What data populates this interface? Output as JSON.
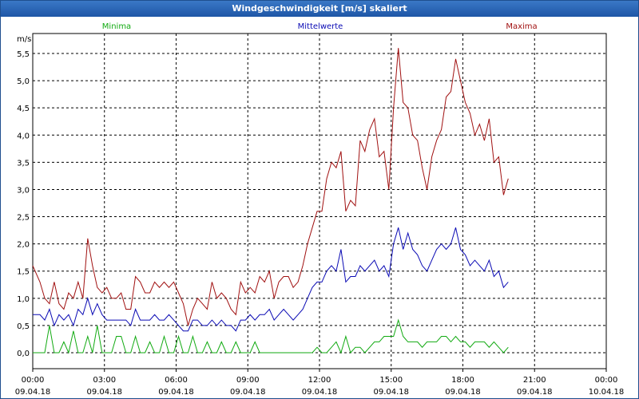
{
  "window": {
    "title": "Windgeschwindigkeit [m/s] skaliert"
  },
  "colors": {
    "minima": "#11aa11",
    "mittelwerte": "#0a0ab4",
    "maxima": "#a01010",
    "grid": "#000000"
  },
  "chart_data": {
    "type": "line",
    "title": "Windgeschwindigkeit [m/s] skaliert",
    "ylabel": "m/s",
    "xlabel": "",
    "ylim": [
      0,
      5.7
    ],
    "xlim": [
      0,
      24
    ],
    "yticks": [
      {
        "value": 0.0,
        "label": "0,0"
      },
      {
        "value": 0.5,
        "label": "0,5"
      },
      {
        "value": 1.0,
        "label": "1,0"
      },
      {
        "value": 1.5,
        "label": "1,5"
      },
      {
        "value": 2.0,
        "label": "2,0"
      },
      {
        "value": 2.5,
        "label": "2,5"
      },
      {
        "value": 3.0,
        "label": "3,0"
      },
      {
        "value": 3.5,
        "label": "3,5"
      },
      {
        "value": 4.0,
        "label": "4,0"
      },
      {
        "value": 4.5,
        "label": "4,5"
      },
      {
        "value": 5.0,
        "label": "5,0"
      },
      {
        "value": 5.5,
        "label": "5,5"
      }
    ],
    "xticks": [
      {
        "value": 0,
        "time": "00:00",
        "date": "09.04.18"
      },
      {
        "value": 3,
        "time": "03:00",
        "date": "09.04.18"
      },
      {
        "value": 6,
        "time": "06:00",
        "date": "09.04.18"
      },
      {
        "value": 9,
        "time": "09:00",
        "date": "09.04.18"
      },
      {
        "value": 12,
        "time": "12:00",
        "date": "09.04.18"
      },
      {
        "value": 15,
        "time": "15:00",
        "date": "09.04.18"
      },
      {
        "value": 18,
        "time": "18:00",
        "date": "09.04.18"
      },
      {
        "value": 21,
        "time": "21:00",
        "date": "09.04.18"
      },
      {
        "value": 24,
        "time": "00:00",
        "date": "10.04.18"
      }
    ],
    "legend": [
      "Minima",
      "Mittelwerte",
      "Maxima"
    ],
    "series": [
      {
        "name": "Maxima",
        "color": "#a01010",
        "points": [
          [
            0,
            1.6
          ],
          [
            0.3,
            1.3
          ],
          [
            0.5,
            1.0
          ],
          [
            0.7,
            0.9
          ],
          [
            0.9,
            1.3
          ],
          [
            1.1,
            0.9
          ],
          [
            1.3,
            0.8
          ],
          [
            1.5,
            1.1
          ],
          [
            1.7,
            1.0
          ],
          [
            1.9,
            1.3
          ],
          [
            2.1,
            1.0
          ],
          [
            2.3,
            2.1
          ],
          [
            2.5,
            1.6
          ],
          [
            2.7,
            1.2
          ],
          [
            2.9,
            1.1
          ],
          [
            3.1,
            1.2
          ],
          [
            3.3,
            1.0
          ],
          [
            3.5,
            1.0
          ],
          [
            3.7,
            1.1
          ],
          [
            3.9,
            0.8
          ],
          [
            4.1,
            0.8
          ],
          [
            4.3,
            1.4
          ],
          [
            4.5,
            1.3
          ],
          [
            4.7,
            1.1
          ],
          [
            4.9,
            1.1
          ],
          [
            5.1,
            1.3
          ],
          [
            5.3,
            1.2
          ],
          [
            5.5,
            1.3
          ],
          [
            5.7,
            1.2
          ],
          [
            5.9,
            1.3
          ],
          [
            6.1,
            1.1
          ],
          [
            6.3,
            0.9
          ],
          [
            6.5,
            0.5
          ],
          [
            6.7,
            0.8
          ],
          [
            6.9,
            1.0
          ],
          [
            7.1,
            0.9
          ],
          [
            7.3,
            0.8
          ],
          [
            7.5,
            1.3
          ],
          [
            7.7,
            1.0
          ],
          [
            7.9,
            1.1
          ],
          [
            8.1,
            1.0
          ],
          [
            8.3,
            0.8
          ],
          [
            8.5,
            0.7
          ],
          [
            8.7,
            1.3
          ],
          [
            8.9,
            1.1
          ],
          [
            9.1,
            1.2
          ],
          [
            9.3,
            1.1
          ],
          [
            9.5,
            1.4
          ],
          [
            9.7,
            1.3
          ],
          [
            9.9,
            1.5
          ],
          [
            10.1,
            1.0
          ],
          [
            10.3,
            1.3
          ],
          [
            10.5,
            1.4
          ],
          [
            10.7,
            1.4
          ],
          [
            10.9,
            1.2
          ],
          [
            11.1,
            1.3
          ],
          [
            11.3,
            1.6
          ],
          [
            11.5,
            2.0
          ],
          [
            11.7,
            2.3
          ],
          [
            11.9,
            2.6
          ],
          [
            12.1,
            2.6
          ],
          [
            12.3,
            3.2
          ],
          [
            12.5,
            3.5
          ],
          [
            12.7,
            3.4
          ],
          [
            12.9,
            3.7
          ],
          [
            13.1,
            2.6
          ],
          [
            13.3,
            2.8
          ],
          [
            13.5,
            2.7
          ],
          [
            13.7,
            3.9
          ],
          [
            13.9,
            3.7
          ],
          [
            14.1,
            4.1
          ],
          [
            14.3,
            4.3
          ],
          [
            14.5,
            3.6
          ],
          [
            14.7,
            3.7
          ],
          [
            14.9,
            3.0
          ],
          [
            15.1,
            4.5
          ],
          [
            15.3,
            5.6
          ],
          [
            15.5,
            4.6
          ],
          [
            15.7,
            4.5
          ],
          [
            15.9,
            4.0
          ],
          [
            16.1,
            3.9
          ],
          [
            16.3,
            3.4
          ],
          [
            16.5,
            3.0
          ],
          [
            16.7,
            3.6
          ],
          [
            16.9,
            3.9
          ],
          [
            17.1,
            4.1
          ],
          [
            17.3,
            4.7
          ],
          [
            17.5,
            4.8
          ],
          [
            17.7,
            5.4
          ],
          [
            17.9,
            5.0
          ],
          [
            18.1,
            4.6
          ],
          [
            18.3,
            4.4
          ],
          [
            18.5,
            4.0
          ],
          [
            18.7,
            4.2
          ],
          [
            18.9,
            3.9
          ],
          [
            19.1,
            4.3
          ],
          [
            19.3,
            3.5
          ],
          [
            19.5,
            3.6
          ],
          [
            19.7,
            2.9
          ],
          [
            19.9,
            3.2
          ]
        ]
      },
      {
        "name": "Mittelwerte",
        "color": "#0a0ab4",
        "points": [
          [
            0,
            0.7
          ],
          [
            0.3,
            0.7
          ],
          [
            0.5,
            0.6
          ],
          [
            0.7,
            0.8
          ],
          [
            0.9,
            0.5
          ],
          [
            1.1,
            0.7
          ],
          [
            1.3,
            0.6
          ],
          [
            1.5,
            0.7
          ],
          [
            1.7,
            0.5
          ],
          [
            1.9,
            0.8
          ],
          [
            2.1,
            0.7
          ],
          [
            2.3,
            1.0
          ],
          [
            2.5,
            0.7
          ],
          [
            2.7,
            0.9
          ],
          [
            2.9,
            0.7
          ],
          [
            3.1,
            0.6
          ],
          [
            3.3,
            0.6
          ],
          [
            3.5,
            0.6
          ],
          [
            3.7,
            0.6
          ],
          [
            3.9,
            0.6
          ],
          [
            4.1,
            0.5
          ],
          [
            4.3,
            0.8
          ],
          [
            4.5,
            0.6
          ],
          [
            4.7,
            0.6
          ],
          [
            4.9,
            0.6
          ],
          [
            5.1,
            0.7
          ],
          [
            5.3,
            0.6
          ],
          [
            5.5,
            0.6
          ],
          [
            5.7,
            0.7
          ],
          [
            5.9,
            0.6
          ],
          [
            6.1,
            0.5
          ],
          [
            6.3,
            0.4
          ],
          [
            6.5,
            0.4
          ],
          [
            6.7,
            0.6
          ],
          [
            6.9,
            0.6
          ],
          [
            7.1,
            0.5
          ],
          [
            7.3,
            0.5
          ],
          [
            7.5,
            0.6
          ],
          [
            7.7,
            0.5
          ],
          [
            7.9,
            0.6
          ],
          [
            8.1,
            0.5
          ],
          [
            8.3,
            0.5
          ],
          [
            8.5,
            0.4
          ],
          [
            8.7,
            0.6
          ],
          [
            8.9,
            0.6
          ],
          [
            9.1,
            0.7
          ],
          [
            9.3,
            0.6
          ],
          [
            9.5,
            0.7
          ],
          [
            9.7,
            0.7
          ],
          [
            9.9,
            0.8
          ],
          [
            10.1,
            0.6
          ],
          [
            10.3,
            0.7
          ],
          [
            10.5,
            0.8
          ],
          [
            10.7,
            0.7
          ],
          [
            10.9,
            0.6
          ],
          [
            11.1,
            0.7
          ],
          [
            11.3,
            0.8
          ],
          [
            11.5,
            1.0
          ],
          [
            11.7,
            1.2
          ],
          [
            11.9,
            1.3
          ],
          [
            12.1,
            1.3
          ],
          [
            12.3,
            1.5
          ],
          [
            12.5,
            1.6
          ],
          [
            12.7,
            1.5
          ],
          [
            12.9,
            1.9
          ],
          [
            13.1,
            1.3
          ],
          [
            13.3,
            1.4
          ],
          [
            13.5,
            1.4
          ],
          [
            13.7,
            1.6
          ],
          [
            13.9,
            1.5
          ],
          [
            14.1,
            1.6
          ],
          [
            14.3,
            1.7
          ],
          [
            14.5,
            1.5
          ],
          [
            14.7,
            1.6
          ],
          [
            14.9,
            1.4
          ],
          [
            15.1,
            2.0
          ],
          [
            15.3,
            2.3
          ],
          [
            15.5,
            1.9
          ],
          [
            15.7,
            2.2
          ],
          [
            15.9,
            1.9
          ],
          [
            16.1,
            1.8
          ],
          [
            16.3,
            1.6
          ],
          [
            16.5,
            1.5
          ],
          [
            16.7,
            1.7
          ],
          [
            16.9,
            1.9
          ],
          [
            17.1,
            2.0
          ],
          [
            17.3,
            1.9
          ],
          [
            17.5,
            2.0
          ],
          [
            17.7,
            2.3
          ],
          [
            17.9,
            1.9
          ],
          [
            18.1,
            1.8
          ],
          [
            18.3,
            1.6
          ],
          [
            18.5,
            1.7
          ],
          [
            18.7,
            1.6
          ],
          [
            18.9,
            1.5
          ],
          [
            19.1,
            1.7
          ],
          [
            19.3,
            1.4
          ],
          [
            19.5,
            1.5
          ],
          [
            19.7,
            1.2
          ],
          [
            19.9,
            1.3
          ]
        ]
      },
      {
        "name": "Minima",
        "color": "#11aa11",
        "points": [
          [
            0,
            0.0
          ],
          [
            0.3,
            0.0
          ],
          [
            0.5,
            0.0
          ],
          [
            0.7,
            0.5
          ],
          [
            0.9,
            0.0
          ],
          [
            1.1,
            0.0
          ],
          [
            1.3,
            0.2
          ],
          [
            1.5,
            0.0
          ],
          [
            1.7,
            0.4
          ],
          [
            1.9,
            0.0
          ],
          [
            2.1,
            0.0
          ],
          [
            2.3,
            0.3
          ],
          [
            2.5,
            0.0
          ],
          [
            2.7,
            0.5
          ],
          [
            2.9,
            0.0
          ],
          [
            3.1,
            0.0
          ],
          [
            3.3,
            0.0
          ],
          [
            3.5,
            0.3
          ],
          [
            3.7,
            0.3
          ],
          [
            3.9,
            0.0
          ],
          [
            4.1,
            0.0
          ],
          [
            4.3,
            0.3
          ],
          [
            4.5,
            0.0
          ],
          [
            4.7,
            0.0
          ],
          [
            4.9,
            0.2
          ],
          [
            5.1,
            0.0
          ],
          [
            5.3,
            0.0
          ],
          [
            5.5,
            0.3
          ],
          [
            5.7,
            0.0
          ],
          [
            5.9,
            0.0
          ],
          [
            6.1,
            0.3
          ],
          [
            6.3,
            0.0
          ],
          [
            6.5,
            0.0
          ],
          [
            6.7,
            0.3
          ],
          [
            6.9,
            0.0
          ],
          [
            7.1,
            0.0
          ],
          [
            7.3,
            0.2
          ],
          [
            7.5,
            0.0
          ],
          [
            7.7,
            0.0
          ],
          [
            7.9,
            0.2
          ],
          [
            8.1,
            0.0
          ],
          [
            8.3,
            0.0
          ],
          [
            8.5,
            0.2
          ],
          [
            8.7,
            0.0
          ],
          [
            8.9,
            0.0
          ],
          [
            9.1,
            0.0
          ],
          [
            9.3,
            0.2
          ],
          [
            9.5,
            0.0
          ],
          [
            9.7,
            0.0
          ],
          [
            9.9,
            0.0
          ],
          [
            10.1,
            0.0
          ],
          [
            10.3,
            0.0
          ],
          [
            10.5,
            0.0
          ],
          [
            10.7,
            0.0
          ],
          [
            10.9,
            0.0
          ],
          [
            11.1,
            0.0
          ],
          [
            11.3,
            0.0
          ],
          [
            11.5,
            0.0
          ],
          [
            11.7,
            0.0
          ],
          [
            11.9,
            0.1
          ],
          [
            12.1,
            0.0
          ],
          [
            12.3,
            0.0
          ],
          [
            12.5,
            0.1
          ],
          [
            12.7,
            0.2
          ],
          [
            12.9,
            0.0
          ],
          [
            13.1,
            0.3
          ],
          [
            13.3,
            0.0
          ],
          [
            13.5,
            0.1
          ],
          [
            13.7,
            0.1
          ],
          [
            13.9,
            0.0
          ],
          [
            14.1,
            0.1
          ],
          [
            14.3,
            0.2
          ],
          [
            14.5,
            0.2
          ],
          [
            14.7,
            0.3
          ],
          [
            14.9,
            0.3
          ],
          [
            15.1,
            0.3
          ],
          [
            15.3,
            0.6
          ],
          [
            15.5,
            0.3
          ],
          [
            15.7,
            0.2
          ],
          [
            15.9,
            0.2
          ],
          [
            16.1,
            0.2
          ],
          [
            16.3,
            0.1
          ],
          [
            16.5,
            0.2
          ],
          [
            16.7,
            0.2
          ],
          [
            16.9,
            0.2
          ],
          [
            17.1,
            0.3
          ],
          [
            17.3,
            0.3
          ],
          [
            17.5,
            0.2
          ],
          [
            17.7,
            0.3
          ],
          [
            17.9,
            0.2
          ],
          [
            18.1,
            0.2
          ],
          [
            18.3,
            0.1
          ],
          [
            18.5,
            0.2
          ],
          [
            18.7,
            0.2
          ],
          [
            18.9,
            0.2
          ],
          [
            19.1,
            0.1
          ],
          [
            19.3,
            0.2
          ],
          [
            19.5,
            0.1
          ],
          [
            19.7,
            0.0
          ],
          [
            19.9,
            0.1
          ]
        ]
      }
    ]
  }
}
